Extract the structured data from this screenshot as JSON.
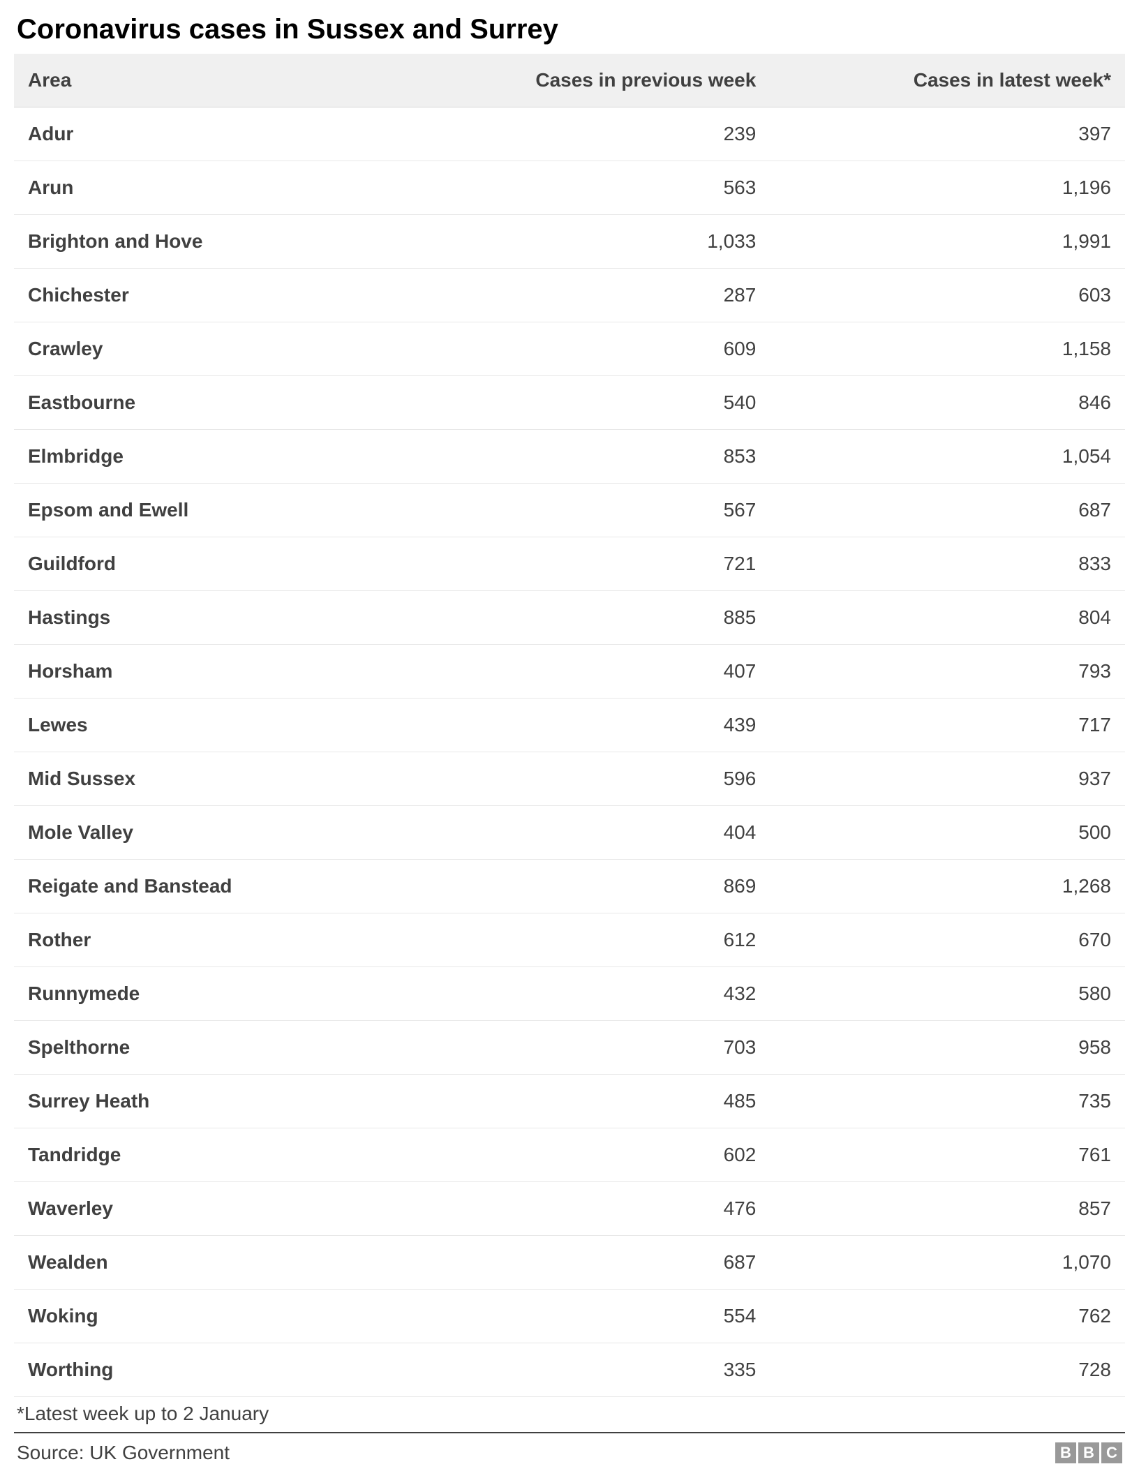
{
  "title": "Coronavirus cases in Sussex and Surrey",
  "table": {
    "columns": [
      "Area",
      "Cases in previous week",
      "Cases in latest week*"
    ],
    "rows": [
      [
        "Adur",
        "239",
        "397"
      ],
      [
        "Arun",
        "563",
        "1,196"
      ],
      [
        "Brighton and Hove",
        "1,033",
        "1,991"
      ],
      [
        "Chichester",
        "287",
        "603"
      ],
      [
        "Crawley",
        "609",
        "1,158"
      ],
      [
        "Eastbourne",
        "540",
        "846"
      ],
      [
        "Elmbridge",
        "853",
        "1,054"
      ],
      [
        "Epsom and Ewell",
        "567",
        "687"
      ],
      [
        "Guildford",
        "721",
        "833"
      ],
      [
        "Hastings",
        "885",
        "804"
      ],
      [
        "Horsham",
        "407",
        "793"
      ],
      [
        "Lewes",
        "439",
        "717"
      ],
      [
        "Mid Sussex",
        "596",
        "937"
      ],
      [
        "Mole Valley",
        "404",
        "500"
      ],
      [
        "Reigate and Banstead",
        "869",
        "1,268"
      ],
      [
        "Rother",
        "612",
        "670"
      ],
      [
        "Runnymede",
        "432",
        "580"
      ],
      [
        "Spelthorne",
        "703",
        "958"
      ],
      [
        "Surrey Heath",
        "485",
        "735"
      ],
      [
        "Tandridge",
        "602",
        "761"
      ],
      [
        "Waverley",
        "476",
        "857"
      ],
      [
        "Wealden",
        "687",
        "1,070"
      ],
      [
        "Woking",
        "554",
        "762"
      ],
      [
        "Worthing",
        "335",
        "728"
      ]
    ]
  },
  "footnote": "*Latest week up to 2 January",
  "source": "Source: UK Government",
  "logo": {
    "letters": [
      "B",
      "B",
      "C"
    ]
  },
  "styling": {
    "title_fontsize": 40,
    "title_color": "#000000",
    "header_bg": "#f0f0f0",
    "header_fontsize": 28,
    "header_color": "#404040",
    "cell_fontsize": 28,
    "cell_color": "#404040",
    "border_color": "#e8e8e8",
    "header_border_color": "#d8d8d8",
    "footer_border_color": "#404040",
    "background_color": "#ffffff",
    "logo_bg": "#999999",
    "logo_fg": "#ffffff"
  }
}
